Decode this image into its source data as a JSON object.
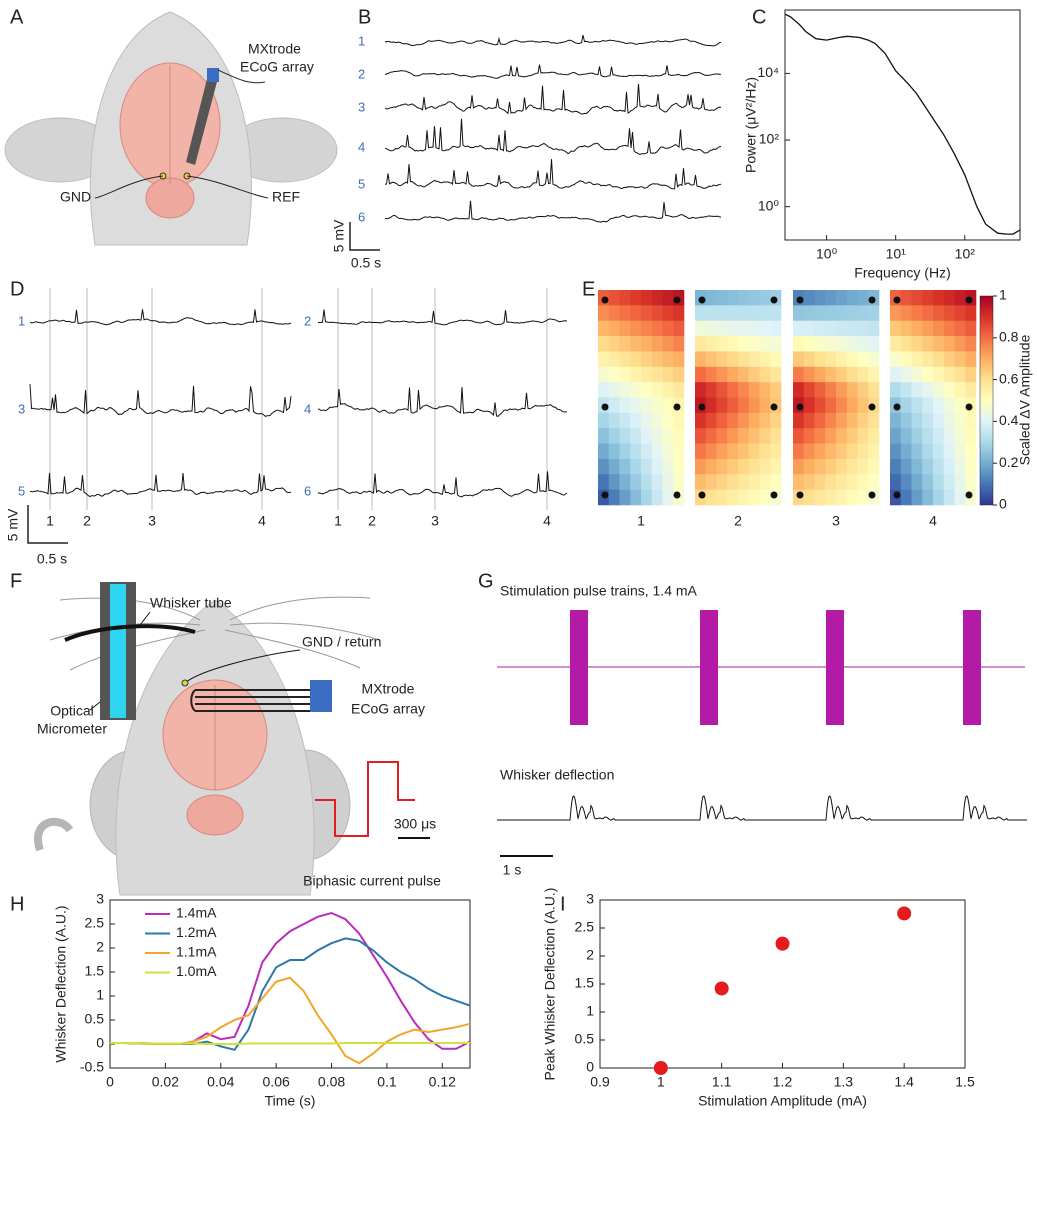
{
  "panel_labels": [
    "A",
    "B",
    "C",
    "D",
    "E",
    "F",
    "G",
    "H",
    "I"
  ],
  "panel_a": {
    "array_label": [
      "MXtrode",
      "ECoG array"
    ],
    "gnd_label": "GND",
    "ref_label": "REF"
  },
  "panel_b": {
    "channels": [
      "1",
      "2",
      "3",
      "4",
      "5",
      "6"
    ],
    "scale_voltage": "5 mV",
    "scale_time": "0.5 s"
  },
  "panel_d": {
    "channels": [
      "1",
      "3",
      "5",
      "2",
      "4",
      "6"
    ],
    "events": [
      "1",
      "2",
      "3",
      "4"
    ],
    "scale_voltage": "5 mV",
    "scale_time": "0.5 s"
  },
  "panel_f": {
    "tube_label": "Whisker tube",
    "micrometer_label": [
      "Optical",
      "Micrometer"
    ],
    "gnd_label": "GND / return",
    "array_label": [
      "MXtrode",
      "ECoG array"
    ],
    "pulse_scale": "300 μs",
    "pulse_label": "Biphasic current pulse"
  },
  "panel_g": {
    "stim_title": "Stimulation pulse trains, 1.4 mA",
    "whisker_title": "Whisker deflection",
    "scale_time": "1 s"
  },
  "chart_data": [
    {
      "type": "line",
      "xlabel": "Frequency (Hz)",
      "ylabel": "Power (μV²/Hz)",
      "log_x": true,
      "log_y": true,
      "color": "#111111",
      "x": [
        0.25,
        0.3,
        0.4,
        0.5,
        0.7,
        1,
        1.5,
        2,
        3,
        4,
        5,
        7,
        10,
        15,
        20,
        30,
        50,
        70,
        100,
        150,
        200,
        300,
        400,
        500,
        630
      ],
      "values": [
        600000,
        500000,
        300000,
        180000,
        110000,
        100000,
        120000,
        130000,
        120000,
        100000,
        80000,
        40000,
        12000,
        5000,
        2500,
        700,
        140,
        40,
        9,
        1,
        0.3,
        0.16,
        0.15,
        0.15,
        0.2
      ],
      "xlim": [
        0.25,
        630
      ],
      "ylim": [
        0.1,
        800000
      ],
      "xticks": [
        {
          "value": 1,
          "label": "10⁰"
        },
        {
          "value": 10,
          "label": "10¹"
        },
        {
          "value": 100,
          "label": "10²"
        }
      ],
      "yticks": [
        {
          "value": 1,
          "label": "10⁰"
        },
        {
          "value": 100,
          "label": "10²"
        },
        {
          "value": 10000,
          "label": "10⁴"
        }
      ]
    },
    {
      "type": "heatmap",
      "categories": [
        "1",
        "2",
        "3",
        "4"
      ],
      "colormap": "RdYlBu_r",
      "values": [
        [
          [
            0.85,
            1
          ],
          [
            0.35,
            0.55
          ],
          [
            0,
            0.5
          ]
        ],
        [
          [
            0.15,
            0.25
          ],
          [
            1,
            0.65
          ],
          [
            0.6,
            0.45
          ]
        ],
        [
          [
            0.05,
            0.2
          ],
          [
            1,
            0.6
          ],
          [
            0.6,
            0.45
          ]
        ],
        [
          [
            0.85,
            1
          ],
          [
            0.25,
            0.55
          ],
          [
            0,
            0.5
          ]
        ]
      ],
      "colorbar_label": "Scaled ΔV Amplitude",
      "clim": [
        0,
        1
      ],
      "cticks": [
        0,
        0.2,
        0.4,
        0.6,
        0.8,
        1
      ]
    },
    {
      "type": "line",
      "xlabel": "Time (s)",
      "ylabel": "Whisker Deflection (A.U.)",
      "legend": "upper left",
      "x": [
        0,
        0.005,
        0.01,
        0.015,
        0.02,
        0.025,
        0.03,
        0.035,
        0.04,
        0.045,
        0.05,
        0.055,
        0.06,
        0.065,
        0.07,
        0.075,
        0.08,
        0.085,
        0.09,
        0.095,
        0.1,
        0.105,
        0.11,
        0.115,
        0.12,
        0.125,
        0.13
      ],
      "series": [
        {
          "name": "1.4mA",
          "color": "#bb2cbb",
          "values": [
            0.02,
            0.02,
            0.01,
            0.01,
            0.01,
            0,
            0.05,
            0.22,
            0.1,
            0.15,
            0.8,
            1.7,
            2.1,
            2.35,
            2.5,
            2.65,
            2.73,
            2.6,
            2.3,
            1.85,
            1.4,
            0.9,
            0.45,
            0.1,
            -0.1,
            -0.1,
            0.05
          ]
        },
        {
          "name": "1.2mA",
          "color": "#2c78a8",
          "values": [
            0.02,
            0.02,
            0.02,
            0.01,
            0,
            0,
            0,
            0.05,
            -0.05,
            -0.12,
            0.3,
            1.1,
            1.6,
            1.75,
            1.75,
            1.95,
            2.1,
            2.2,
            2.15,
            1.95,
            1.7,
            1.5,
            1.35,
            1.15,
            1.0,
            0.9,
            0.8
          ]
        },
        {
          "name": "1.1mA",
          "color": "#f2a52a",
          "values": [
            0.02,
            0.02,
            0.01,
            0,
            0,
            0,
            0.05,
            0.15,
            0.35,
            0.5,
            0.6,
            0.95,
            1.3,
            1.38,
            1.1,
            0.6,
            0.2,
            -0.25,
            -0.4,
            -0.2,
            0.05,
            0.2,
            0.3,
            0.25,
            0.3,
            0.35,
            0.42
          ]
        },
        {
          "name": "1.0mA",
          "color": "#cfe23a",
          "values": [
            0.02,
            0.02,
            0.02,
            0.01,
            0.01,
            0.01,
            0.01,
            0,
            0,
            0,
            0.01,
            0.01,
            0.01,
            0.01,
            0.01,
            0.01,
            0.01,
            0.02,
            0.02,
            0.02,
            0.02,
            0.02,
            0.02,
            0.02,
            0.02,
            0.02,
            0.02
          ]
        }
      ],
      "xlim": [
        0,
        0.13
      ],
      "ylim": [
        -0.5,
        3
      ],
      "xticks": [
        0,
        0.02,
        0.04,
        0.06,
        0.08,
        0.1,
        0.12
      ],
      "yticks": [
        -0.5,
        0,
        0.5,
        1,
        1.5,
        2,
        2.5,
        3
      ]
    },
    {
      "type": "scatter",
      "xlabel": "Stimulation Amplitude (mA)",
      "ylabel": "Peak Whisker Deflection (A.U.)",
      "color": "#e41a1c",
      "x": [
        1,
        1.1,
        1.2,
        1.4
      ],
      "values": [
        0,
        1.42,
        2.22,
        2.76
      ],
      "xlim": [
        0.9,
        1.5
      ],
      "ylim": [
        0,
        3
      ],
      "xticks": [
        0.9,
        1,
        1.1,
        1.2,
        1.3,
        1.4,
        1.5
      ],
      "yticks": [
        0,
        0.5,
        1,
        1.5,
        2,
        2.5,
        3
      ]
    }
  ]
}
